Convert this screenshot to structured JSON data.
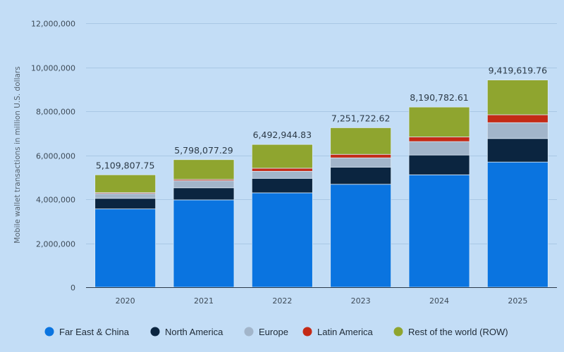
{
  "chart_data": {
    "type": "bar",
    "stacked": true,
    "title": "",
    "xlabel": "",
    "ylabel": "Mobile wallet transactions in million U.S. dollars",
    "ylim": [
      0,
      12000000
    ],
    "yticks": [
      0,
      2000000,
      4000000,
      6000000,
      8000000,
      10000000,
      12000000
    ],
    "ytick_labels": [
      "0",
      "2,000,000",
      "4,000,000",
      "6,000,000",
      "8,000,000",
      "10,000,000",
      "12,000,000"
    ],
    "grid": true,
    "legend_position": "bottom",
    "categories": [
      "2020",
      "2021",
      "2022",
      "2023",
      "2024",
      "2025"
    ],
    "totals": [
      5109807.75,
      5798077.29,
      6492944.83,
      7251722.62,
      8190782.61,
      9419619.76
    ],
    "total_labels": [
      "5,109,807.75",
      "5,798,077.29",
      "6,492,944.83",
      "7,251,722.62",
      "8,190,782.61",
      "9,419,619.76"
    ],
    "series": [
      {
        "name": "Far East & China",
        "color": "#0a74e0",
        "values": [
          3560000,
          3970000,
          4290000,
          4680000,
          5110000,
          5690000
        ]
      },
      {
        "name": "North America",
        "color": "#0b2540",
        "values": [
          480000,
          550000,
          660000,
          780000,
          900000,
          1070000
        ]
      },
      {
        "name": "Europe",
        "color": "#a2b5ca",
        "values": [
          220000,
          320000,
          320000,
          420000,
          610000,
          720000
        ]
      },
      {
        "name": "Latin America",
        "color": "#c42a16",
        "values": [
          40000,
          60000,
          140000,
          160000,
          210000,
          360000
        ]
      },
      {
        "name": "Rest of the world (ROW)",
        "color": "#8fa52f",
        "values": [
          810000,
          900000,
          1080000,
          1210000,
          1360000,
          1580000
        ]
      }
    ]
  }
}
